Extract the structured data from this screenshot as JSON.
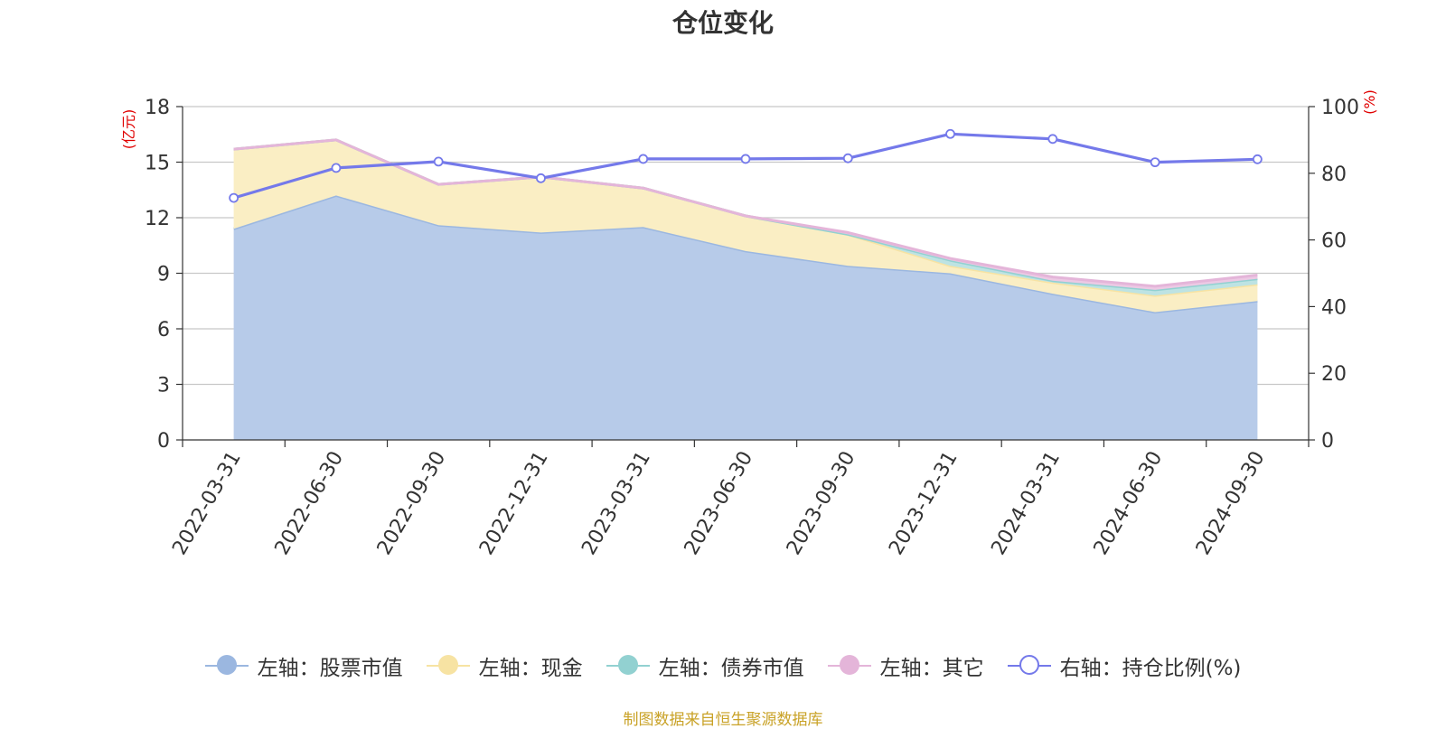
{
  "chart_data": {
    "type": "area",
    "title": "仓位变化",
    "categories": [
      "2022-03-31",
      "2022-06-30",
      "2022-09-30",
      "2022-12-31",
      "2023-03-31",
      "2023-06-30",
      "2023-09-30",
      "2023-12-31",
      "2024-03-31",
      "2024-06-30",
      "2024-09-30"
    ],
    "left_axis": {
      "unit": "(亿元)",
      "ylim": [
        0,
        18
      ],
      "ticks": [
        0,
        3,
        6,
        9,
        12,
        15,
        18
      ]
    },
    "right_axis": {
      "unit": "(%)",
      "ylim": [
        0,
        100
      ],
      "ticks": [
        0,
        20,
        40,
        60,
        80,
        100
      ]
    },
    "stacked": true,
    "series": [
      {
        "name": "左轴：股票市值",
        "axis": "left",
        "color": "#9bb7e0",
        "fill": "#b7cbe9",
        "values": [
          11.4,
          13.2,
          11.6,
          11.2,
          11.5,
          10.2,
          9.4,
          9.0,
          7.9,
          6.9,
          7.5
        ]
      },
      {
        "name": "左轴：现金",
        "axis": "left",
        "color": "#f7e3a3",
        "fill": "#faeec4",
        "values": [
          4.3,
          3.0,
          2.2,
          3.0,
          2.1,
          1.9,
          1.7,
          0.4,
          0.6,
          0.9,
          0.9
        ]
      },
      {
        "name": "左轴：债券市值",
        "axis": "left",
        "color": "#92d1d1",
        "fill": "#bde3e3",
        "values": [
          0.0,
          0.0,
          0.0,
          0.0,
          0.0,
          0.0,
          0.0,
          0.3,
          0.1,
          0.3,
          0.3
        ]
      },
      {
        "name": "左轴：其它",
        "axis": "left",
        "color": "#e4b5d9",
        "fill": "#ecc9e4",
        "values": [
          0.0,
          0.0,
          0.0,
          0.0,
          0.0,
          0.0,
          0.1,
          0.1,
          0.2,
          0.2,
          0.2
        ]
      },
      {
        "name": "右轴：持仓比例(%)",
        "axis": "right",
        "type": "line",
        "color": "#7479ea",
        "values": [
          72.6,
          81.6,
          83.5,
          78.5,
          84.3,
          84.3,
          84.5,
          91.8,
          90.3,
          83.3,
          84.2
        ]
      }
    ],
    "grid": true,
    "legend": "bottom"
  },
  "source_note": "制图数据来自恒生聚源数据库"
}
